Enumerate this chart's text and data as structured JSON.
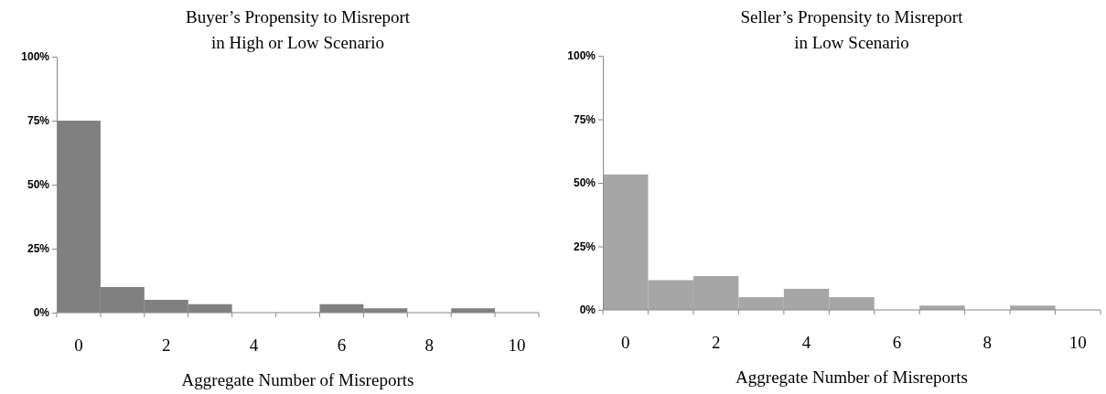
{
  "chart_data": [
    {
      "type": "bar",
      "title": "Buyer’s Propensity to Misreport\nin High or Low Scenario",
      "xlabel": "Aggregate Number of  Misreports",
      "categories": [
        "0",
        null,
        "2",
        null,
        "4",
        null,
        "6",
        null,
        "8",
        null,
        "10"
      ],
      "values": [
        75,
        10,
        5,
        3.3,
        0,
        0,
        3.3,
        1.7,
        0,
        1.7,
        0
      ],
      "color": "#808080",
      "ylim": [
        0,
        100
      ],
      "yticks": [
        {
          "value": 0,
          "label": "0%"
        },
        {
          "value": 25,
          "label": "25%"
        },
        {
          "value": 50,
          "label": "50%"
        },
        {
          "value": 75,
          "label": "75%"
        },
        {
          "value": 100,
          "label": "100%"
        }
      ],
      "grid": false
    },
    {
      "type": "bar",
      "title": "Seller’s Propensity to Misreport\nin Low Scenario",
      "xlabel": "Aggregate Number of  Misreports",
      "categories": [
        "0",
        null,
        "2",
        null,
        "4",
        null,
        "6",
        null,
        "8",
        null,
        "10"
      ],
      "values": [
        53.3,
        11.7,
        13.3,
        5,
        8.3,
        5,
        0,
        1.7,
        0,
        1.7,
        0
      ],
      "color": "#a6a6a6",
      "ylim": [
        0,
        100
      ],
      "yticks": [
        {
          "value": 0,
          "label": "0%"
        },
        {
          "value": 25,
          "label": "25%"
        },
        {
          "value": 50,
          "label": "50%"
        },
        {
          "value": 75,
          "label": "75%"
        },
        {
          "value": 100,
          "label": "100%"
        }
      ],
      "grid": false
    }
  ]
}
